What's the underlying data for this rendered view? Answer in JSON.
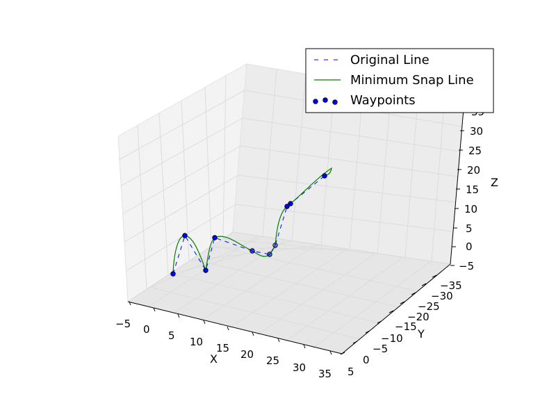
{
  "chart_data": {
    "type": "line-3d",
    "axes": {
      "x": {
        "label": "X",
        "ticks": [
          "−5",
          "0",
          "5",
          "10",
          "15",
          "20",
          "25",
          "30",
          "35"
        ],
        "range": [
          -5,
          35
        ]
      },
      "y": {
        "label": "Y",
        "ticks": [
          "5",
          "0",
          "−5",
          "−10",
          "−15",
          "−20",
          "−25",
          "−30",
          "−35"
        ],
        "range": [
          5,
          -35
        ]
      },
      "z": {
        "label": "Z",
        "ticks": [
          "−5",
          "0",
          "5",
          "10",
          "15",
          "20",
          "25",
          "30",
          "35"
        ],
        "range": [
          -5,
          35
        ]
      }
    },
    "grid": true,
    "legend": {
      "placement": "top-right",
      "entries": [
        "Original Line",
        "Minimum Snap Line",
        "Waypoints"
      ]
    },
    "series": [
      {
        "name": "Original Line",
        "style": "dashed",
        "color": "#0000ff"
      },
      {
        "name": "Minimum Snap Line",
        "style": "solid",
        "color": "#008000"
      },
      {
        "name": "Waypoints",
        "style": "markers",
        "color": "#0000ff"
      }
    ]
  }
}
